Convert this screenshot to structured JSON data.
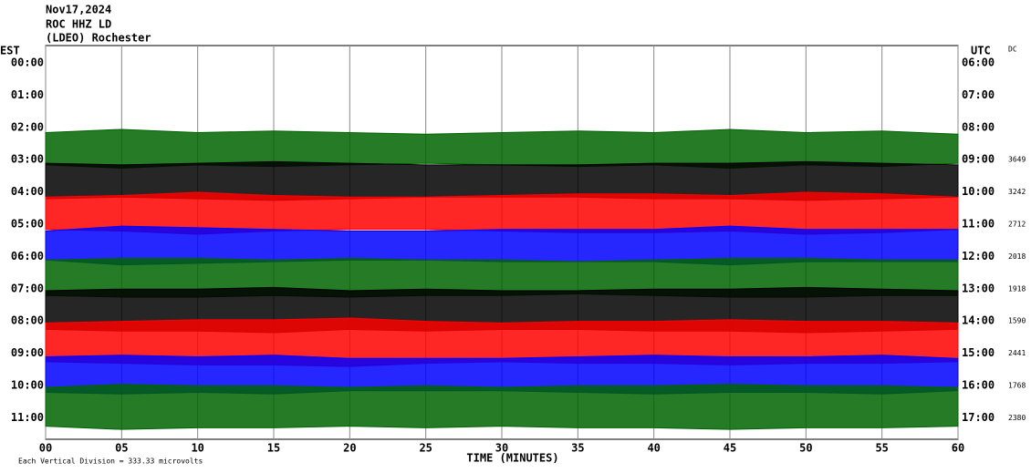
{
  "chart_data": {
    "type": "helicorder",
    "title_lines": [
      "Nov17,2024",
      "ROC HHZ LD",
      "(LDEO) Rochester"
    ],
    "left_axis_label": "EST",
    "right_axis_label": "UTC",
    "corner_label": "DC",
    "x_label": "TIME (MINUTES)",
    "scale_note": "Each Vertical Division =  333.33 microvolts",
    "xlim": [
      0,
      60
    ],
    "xticks": [
      {
        "value": 0,
        "label": "00"
      },
      {
        "value": 5,
        "label": "05"
      },
      10,
      15,
      20,
      25,
      30,
      35,
      40,
      45,
      50,
      55,
      60
    ],
    "x": [
      0,
      5,
      10,
      15,
      20,
      25,
      30,
      35,
      40,
      45,
      50,
      55,
      60
    ],
    "rows": [
      {
        "est": "00:00",
        "utc": "06:00"
      },
      {
        "est": "01:00",
        "utc": "07:00"
      },
      {
        "est": "02:00",
        "utc": "08:00"
      },
      {
        "est": "03:00",
        "utc": "09:00",
        "count": 3649,
        "color": "#006400",
        "amplitude": [
          1.0,
          1.2,
          1.0,
          1.1,
          1.0,
          0.9,
          1.0,
          1.1,
          1.0,
          1.2,
          1.0,
          1.1,
          0.9
        ]
      },
      {
        "est": "04:00",
        "utc": "10:00",
        "count": 3242,
        "color": "#000000",
        "amplitude": [
          1.1,
          1.0,
          1.1,
          1.2,
          1.1,
          1.0,
          1.0,
          1.0,
          1.1,
          1.1,
          1.2,
          1.1,
          1.0
        ]
      },
      {
        "est": "05:00",
        "utc": "11:00",
        "count": 2712,
        "color": "#ff0000",
        "amplitude": [
          1.0,
          1.1,
          1.3,
          1.1,
          1.0,
          1.0,
          1.1,
          1.2,
          1.2,
          1.1,
          1.3,
          1.2,
          1.0
        ]
      },
      {
        "est": "06:00",
        "utc": "12:00",
        "count": 2018,
        "color": "#0000ff",
        "amplitude": [
          0.9,
          1.2,
          1.1,
          1.0,
          0.9,
          0.9,
          1.0,
          1.0,
          1.0,
          1.2,
          1.0,
          1.0,
          1.0
        ]
      },
      {
        "est": "07:00",
        "utc": "13:00",
        "count": 1918,
        "color": "#006400",
        "amplitude": [
          1.1,
          1.2,
          1.2,
          1.1,
          1.2,
          1.1,
          1.1,
          1.0,
          1.1,
          1.2,
          1.2,
          1.1,
          1.1
        ]
      },
      {
        "est": "08:00",
        "utc": "14:00",
        "count": 1590,
        "color": "#000000",
        "amplitude": [
          1.2,
          1.3,
          1.3,
          1.4,
          1.2,
          1.3,
          1.2,
          1.2,
          1.3,
          1.3,
          1.4,
          1.3,
          1.2
        ]
      },
      {
        "est": "09:00",
        "utc": "15:00",
        "count": 2441,
        "color": "#ff0000",
        "amplitude": [
          1.2,
          1.3,
          1.4,
          1.4,
          1.5,
          1.3,
          1.2,
          1.3,
          1.3,
          1.4,
          1.3,
          1.3,
          1.2
        ]
      },
      {
        "est": "10:00",
        "utc": "16:00",
        "count": 1768,
        "color": "#0000ff",
        "amplitude": [
          1.1,
          1.2,
          1.1,
          1.2,
          1.0,
          1.0,
          1.0,
          1.1,
          1.2,
          1.1,
          1.1,
          1.2,
          1.0
        ]
      },
      {
        "est": "11:00",
        "utc": "17:00",
        "count": 2380,
        "color": "#006400",
        "amplitude": [
          1.2,
          1.4,
          1.3,
          1.3,
          1.2,
          1.3,
          1.2,
          1.3,
          1.3,
          1.4,
          1.3,
          1.3,
          1.2
        ]
      }
    ]
  }
}
